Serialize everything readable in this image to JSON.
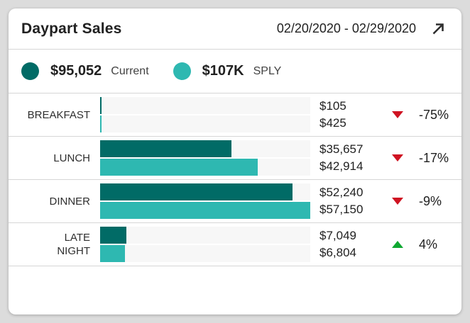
{
  "header": {
    "title": "Daypart Sales",
    "date_range": "02/20/2020 - 02/29/2020"
  },
  "legend": {
    "current": {
      "value": "$95,052",
      "label": "Current",
      "color": "#016b66"
    },
    "sply": {
      "value": "$107K",
      "label": "SPLY",
      "color": "#2eb8b1"
    }
  },
  "chart_data": {
    "type": "bar",
    "orientation": "horizontal",
    "title": "Daypart Sales",
    "date_range": "02/20/2020 - 02/29/2020",
    "categories": [
      "BREAKFAST",
      "LUNCH",
      "DINNER",
      "LATE NIGHT"
    ],
    "category_lines": [
      [
        "BREAKFAST"
      ],
      [
        "LUNCH"
      ],
      [
        "DINNER"
      ],
      [
        "LATE",
        "NIGHT"
      ]
    ],
    "series": [
      {
        "name": "Current",
        "total": "$95,052",
        "color": "#016b66",
        "values": [
          105,
          35657,
          52240,
          7049
        ]
      },
      {
        "name": "SPLY",
        "total": "$107K",
        "color": "#2eb8b1",
        "values": [
          425,
          42914,
          57150,
          6804
        ]
      }
    ],
    "value_labels": [
      [
        "$105",
        "$425"
      ],
      [
        "$35,657",
        "$42,914"
      ],
      [
        "$52,240",
        "$57,150"
      ],
      [
        "$7,049",
        "$6,804"
      ]
    ],
    "changes": [
      {
        "label": "-75%",
        "direction": "down"
      },
      {
        "label": "-17%",
        "direction": "down"
      },
      {
        "label": "-9%",
        "direction": "down"
      },
      {
        "label": "4%",
        "direction": "up"
      }
    ],
    "xmax": 57150,
    "track_color": "#f7f7f7",
    "trend_colors": {
      "down": "#cf1322",
      "up": "#0fa831"
    }
  }
}
